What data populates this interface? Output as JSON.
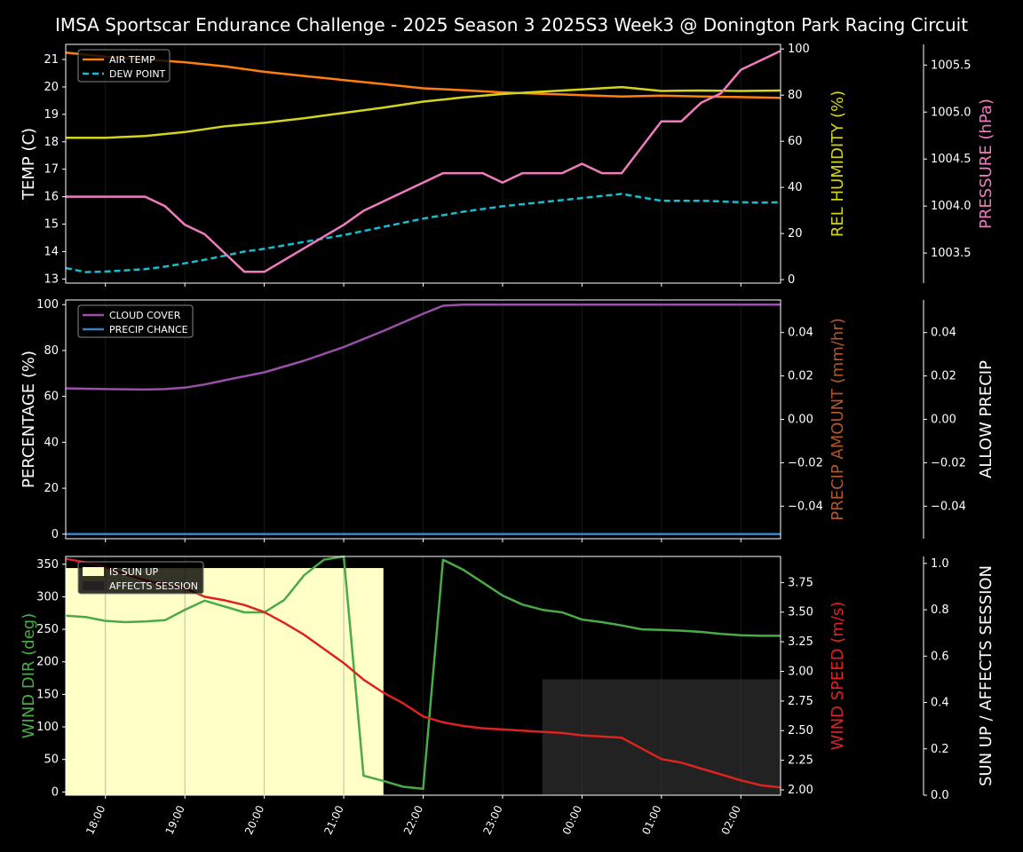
{
  "title": "IMSA Sportscar Endurance Challenge - 2025 Season 3 2025S3 Week3 @ Donington Park Racing Circuit",
  "colors": {
    "air_temp": "#ff7f0e",
    "dew_point": "#17becf",
    "humidity": "#d4d41a",
    "pressure": "#f07cbf",
    "cloud_cover": "#9a4faa",
    "precip_chance": "#3f7fbf",
    "precip_amount_label": "#b0562a",
    "wind_dir": "#4aab46",
    "wind_speed": "#dd2222",
    "sun_up": "#ffffc8",
    "affects_session": "#222222"
  },
  "chart_data": [
    {
      "type": "line",
      "ylabel": "TEMP (C)",
      "ylabel_right": "REL HUMIDITY (%)",
      "ylabel_far_right": "PRESSURE (hPa)",
      "xlim": [
        17.5,
        26.5
      ],
      "ylim": [
        12.85,
        21.55
      ],
      "ylim_right": [
        -1.5,
        102
      ],
      "ylim_far_right": [
        1003.18,
        1005.72
      ],
      "yticks": [
        "13",
        "14",
        "15",
        "16",
        "17",
        "18",
        "19",
        "20",
        "21"
      ],
      "yticks_right": [
        "0",
        "20",
        "40",
        "60",
        "80",
        "100"
      ],
      "yticks_far_right": [
        "1003.5",
        "1004.0",
        "1004.5",
        "1005.0",
        "1005.5"
      ],
      "legend": [
        "AIR TEMP",
        "DEW POINT"
      ],
      "legend_position": "upper-left",
      "series": [
        {
          "name": "AIR TEMP",
          "axis": "left",
          "x": [
            17.5,
            18,
            18.5,
            19,
            19.5,
            20,
            20.5,
            21,
            21.5,
            22,
            22.5,
            23,
            23.5,
            24,
            24.5,
            25,
            25.5,
            26,
            26.5
          ],
          "y": [
            21.25,
            21.1,
            21.0,
            20.9,
            20.75,
            20.55,
            20.4,
            20.25,
            20.1,
            19.95,
            19.88,
            19.8,
            19.75,
            19.7,
            19.65,
            19.68,
            19.65,
            19.63,
            19.6
          ]
        },
        {
          "name": "DEW POINT",
          "axis": "left",
          "x": [
            17.5,
            17.75,
            18,
            18.5,
            18.75,
            19,
            19.25,
            19.5,
            19.75,
            20,
            20.5,
            21,
            21.5,
            22,
            22.5,
            23,
            23.5,
            24,
            24.5,
            25,
            25.5,
            26,
            26.25,
            26.5
          ],
          "y": [
            13.4,
            13.25,
            13.27,
            13.36,
            13.45,
            13.57,
            13.7,
            13.85,
            14.0,
            14.1,
            14.35,
            14.6,
            14.9,
            15.2,
            15.45,
            15.65,
            15.8,
            15.95,
            16.1,
            15.85,
            15.85,
            15.8,
            15.78,
            15.8
          ]
        },
        {
          "name": "REL HUMIDITY",
          "axis": "right",
          "x": [
            17.5,
            18,
            18.5,
            19,
            19.5,
            20,
            20.5,
            21,
            21.5,
            22,
            22.5,
            23,
            23.5,
            24,
            24.5,
            25,
            25.5,
            26,
            26.5
          ],
          "y": [
            61.5,
            61.5,
            62.3,
            64,
            66.5,
            68,
            70,
            72.3,
            74.6,
            77.2,
            79,
            80.5,
            81.5,
            82.5,
            83.5,
            81.8,
            82,
            81.8,
            82
          ]
        },
        {
          "name": "PRESSURE",
          "axis": "far_right",
          "x": [
            17.5,
            18.25,
            18.5,
            18.75,
            19,
            19.25,
            19.5,
            19.75,
            20,
            20.5,
            21,
            21.25,
            21.5,
            22,
            22.25,
            22.5,
            22.75,
            23,
            23.25,
            23.5,
            23.75,
            24,
            24.25,
            24.5,
            25,
            25.25,
            25.5,
            25.75,
            26,
            26.5
          ],
          "y": [
            1004.1,
            1004.1,
            1004.1,
            1004.0,
            1003.8,
            1003.7,
            1003.5,
            1003.3,
            1003.3,
            1003.55,
            1003.8,
            1003.95,
            1004.05,
            1004.25,
            1004.35,
            1004.35,
            1004.35,
            1004.25,
            1004.35,
            1004.35,
            1004.35,
            1004.45,
            1004.35,
            1004.35,
            1004.9,
            1004.9,
            1005.1,
            1005.2,
            1005.45,
            1005.65
          ]
        }
      ]
    },
    {
      "type": "line",
      "ylabel": "PERCENTAGE (%)",
      "ylabel_right": "PRECIP AMOUNT (mm/hr)",
      "ylabel_far_right": "ALLOW PRECIP",
      "xlim": [
        17.5,
        26.5
      ],
      "ylim": [
        -2,
        102
      ],
      "ylim_right": [
        -0.055,
        0.055
      ],
      "yticks": [
        "0",
        "20",
        "40",
        "60",
        "80",
        "100"
      ],
      "yticks_right": [
        "−0.04",
        "−0.02",
        "0.00",
        "0.02",
        "0.04"
      ],
      "yticks_far_right": [
        "−0.04",
        "−0.02",
        "0.00",
        "0.02",
        "0.04"
      ],
      "legend": [
        "CLOUD COVER",
        "PRECIP CHANCE"
      ],
      "legend_position": "upper-left",
      "series": [
        {
          "name": "CLOUD COVER",
          "axis": "left",
          "x": [
            17.5,
            18,
            18.5,
            18.75,
            19,
            19.25,
            19.5,
            20,
            20.5,
            21,
            21.5,
            22,
            22.25,
            22.5,
            23,
            24,
            25,
            26,
            26.5
          ],
          "y": [
            63.5,
            63.2,
            63,
            63.2,
            63.8,
            65.2,
            67,
            70.5,
            75.5,
            81.5,
            88.5,
            96,
            99.5,
            100,
            100,
            100,
            100,
            100,
            100
          ]
        },
        {
          "name": "PRECIP CHANCE",
          "axis": "left",
          "x": [
            17.5,
            26.5
          ],
          "y": [
            0,
            0
          ]
        }
      ]
    },
    {
      "type": "line",
      "ylabel": "WIND DIR (deg)",
      "ylabel_right": "WIND SPEED (m/s)",
      "ylabel_far_right": "SUN UP / AFFECTS SESSION",
      "xlim": [
        17.5,
        26.5
      ],
      "ylim": [
        -5,
        362
      ],
      "ylim_right": [
        1.955,
        3.97
      ],
      "ylim_far_right": [
        0,
        1.03
      ],
      "yticks": [
        "0",
        "50",
        "100",
        "150",
        "200",
        "250",
        "300",
        "350"
      ],
      "yticks_right": [
        "2.00",
        "2.25",
        "2.50",
        "2.75",
        "3.00",
        "3.25",
        "3.50",
        "3.75"
      ],
      "yticks_far_right": [
        "0.0",
        "0.2",
        "0.4",
        "0.6",
        "0.8",
        "1.0"
      ],
      "legend": [
        "IS SUN UP",
        "AFFECTS SESSION"
      ],
      "legend_position": "upper-left",
      "xticks": [
        "18:00",
        "19:00",
        "20:00",
        "21:00",
        "22:00",
        "23:00",
        "00:00",
        "01:00",
        "02:00"
      ],
      "xtick_values": [
        18,
        19,
        20,
        21,
        22,
        23,
        24,
        25,
        26
      ],
      "bands": [
        {
          "name": "IS SUN UP",
          "x0": 17.5,
          "x1": 21.5,
          "value": 0.98
        },
        {
          "name": "AFFECTS SESSION",
          "x0": 23.5,
          "x1": 26.5,
          "value": 0.5
        }
      ],
      "series": [
        {
          "name": "WIND DIR",
          "axis": "left",
          "x": [
            17.5,
            17.75,
            18,
            18.25,
            18.5,
            18.75,
            19,
            19.25,
            19.5,
            19.75,
            20,
            20.25,
            20.5,
            20.75,
            21,
            21.25,
            21.5,
            21.75,
            22,
            22.25,
            22.5,
            22.75,
            23,
            23.25,
            23.5,
            23.75,
            24,
            24.25,
            24.5,
            24.75,
            25,
            25.25,
            25.5,
            25.75,
            26,
            26.25,
            26.5
          ],
          "y": [
            271,
            269,
            263,
            261,
            262,
            264,
            280,
            294,
            285,
            276,
            276,
            295,
            333,
            357,
            362,
            25,
            17,
            8,
            5,
            357,
            342,
            322,
            302,
            288,
            280,
            276,
            265,
            261,
            256,
            250,
            249,
            248,
            246,
            243,
            241,
            240,
            240
          ]
        },
        {
          "name": "WIND SPEED",
          "axis": "right",
          "x": [
            17.5,
            17.75,
            18,
            18.25,
            18.5,
            18.75,
            19,
            19.25,
            19.5,
            19.75,
            20,
            20.25,
            20.5,
            20.75,
            21,
            21.25,
            21.5,
            21.75,
            22,
            22.25,
            22.5,
            22.75,
            23,
            23.25,
            23.5,
            23.75,
            24,
            24.25,
            24.5,
            24.75,
            25,
            25.25,
            25.5,
            25.75,
            26,
            26.25,
            26.5
          ],
          "y": [
            3.95,
            3.92,
            3.88,
            3.82,
            3.77,
            3.73,
            3.7,
            3.63,
            3.6,
            3.56,
            3.5,
            3.41,
            3.31,
            3.19,
            3.07,
            2.93,
            2.82,
            2.73,
            2.62,
            2.57,
            2.54,
            2.52,
            2.51,
            2.5,
            2.49,
            2.48,
            2.46,
            2.45,
            2.44,
            2.35,
            2.26,
            2.23,
            2.18,
            2.13,
            2.08,
            2.04,
            2.02
          ]
        }
      ]
    }
  ]
}
